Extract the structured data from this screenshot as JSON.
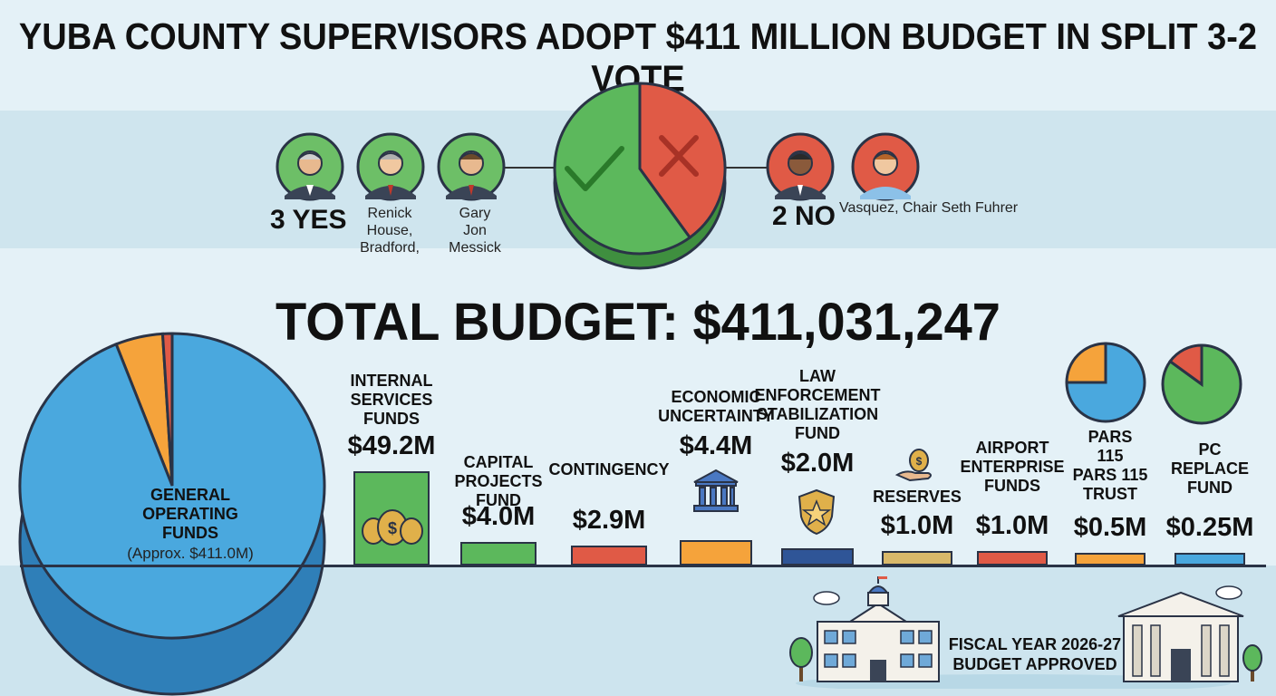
{
  "headline": "YUBA COUNTY SUPERVISORS ADOPT $411 MILLION BUDGET IN SPLIT 3-2 VOTE",
  "vote": {
    "yes_label": "3 YES",
    "yes_names_line1": "Renick House,",
    "yes_names_line2": "Bradford,",
    "yes_names_line3": "Gary",
    "yes_names_line4": "Jon Messick",
    "no_label": "2 NO",
    "no_names": "Vasquez, Chair  Seth Fuhrer",
    "yes_count": 3,
    "no_count": 2,
    "yes_color": "#5cb85c",
    "no_color": "#e05a46"
  },
  "total_budget_label": "TOTAL BUDGET: $411,031,247",
  "chart_data": {
    "type": "bar",
    "categories": [
      "INTERNAL SERVICES FUNDS",
      "CAPITAL PROJECTS FUND",
      "CONTINGENCY",
      "ECONOMIC UNCERTAINTY",
      "LAW ENFORCEMENT STABILIZATION FUND",
      "RESERVES",
      "AIRPORT ENTERPRISE FUNDS",
      "PARS 115 PARS 115 TRUST",
      "PC REPLACE FUND"
    ],
    "label_lines": [
      [
        "INTERNAL",
        "SERVICES",
        "FUNDS"
      ],
      [
        "CAPITAL",
        "PROJECTS",
        "FUND"
      ],
      [
        "CONTINGENCY"
      ],
      [
        "ECONOMIC",
        "UNCERTAINTY"
      ],
      [
        "LAW",
        "ENFORCEMENT",
        "STABILIZATION",
        "FUND"
      ],
      [
        "RESERVES"
      ],
      [
        "AIRPORT",
        "ENTERPRISE",
        "FUNDS"
      ],
      [
        "PARS",
        "115",
        "PARS 115",
        "TRUST"
      ],
      [
        "PC",
        "REPLACE",
        "FUND"
      ]
    ],
    "value_labels": [
      "$49.2M",
      "$4.0M",
      "$2.9M",
      "$4.4M",
      "$2.0M",
      "$1.0M",
      "$1.0M",
      "$0.5M",
      "$0.25M"
    ],
    "values": [
      49.2,
      4.0,
      2.9,
      4.4,
      2.0,
      1.0,
      1.0,
      0.5,
      0.25
    ],
    "colors": [
      "#5cb85c",
      "#5cb85c",
      "#e05a46",
      "#f5a33b",
      "#2f5597",
      "#d9b96a",
      "#e05a46",
      "#f5a33b",
      "#4aa8de"
    ],
    "icons": [
      "money-bags-icon",
      "",
      "",
      "bank-building-icon",
      "police-badge-icon",
      "money-hand-icon",
      "",
      "",
      ""
    ],
    "general_fund": {
      "label_line1": "GENERAL",
      "label_line2": "OPERATING",
      "label_line3": "FUNDS",
      "value_label": "(Approx. $411.0M)",
      "pie_slices": [
        0.94,
        0.05,
        0.01
      ],
      "pie_colors": [
        "#4aa8de",
        "#f5a33b",
        "#e05a46"
      ]
    },
    "pars_pie": {
      "slices": [
        0.75,
        0.25
      ],
      "colors": [
        "#4aa8de",
        "#f5a33b"
      ]
    },
    "pc_pie": {
      "slices": [
        0.85,
        0.15
      ],
      "colors": [
        "#5cb85c",
        "#e05a46"
      ]
    }
  },
  "footer": {
    "line1": "FISCAL YEAR 2026-27",
    "line2": "BUDGET APPROVED"
  }
}
